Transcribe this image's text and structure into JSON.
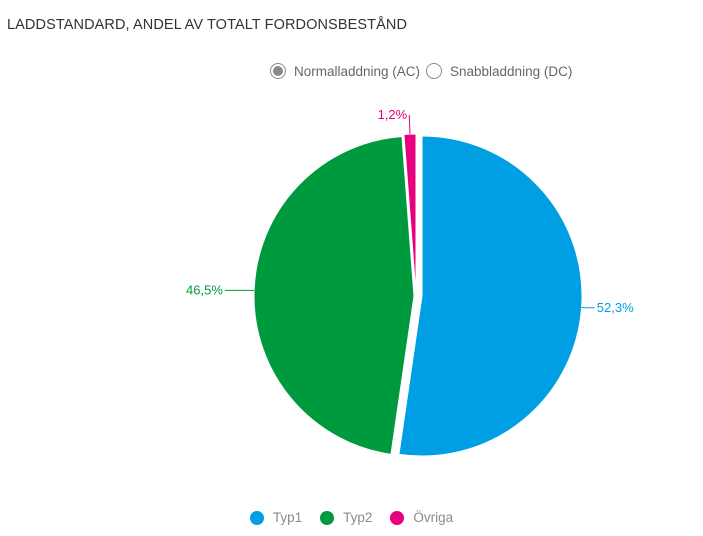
{
  "title": "LADDSTANDARD, ANDEL AV TOTALT FORDONSBESTÅND",
  "toggles": [
    {
      "label": "Normalladdning (AC)",
      "selected": true
    },
    {
      "label": "Snabbladdning (DC)",
      "selected": false
    }
  ],
  "chart_data": {
    "type": "pie",
    "title": "LADDSTANDARD, ANDEL AV TOTALT FORDONSBESTÅND",
    "categories": [
      "Typ1",
      "Typ2",
      "Övriga"
    ],
    "values": [
      52.3,
      46.5,
      1.2
    ],
    "labels": [
      "52,3%",
      "46,5%",
      "1,2%"
    ],
    "colors": [
      "#009fe3",
      "#009a3e",
      "#e6007e"
    ],
    "legend_position": "bottom"
  },
  "legend": [
    {
      "label": "Typ1",
      "color": "#009fe3"
    },
    {
      "label": "Typ2",
      "color": "#009a3e"
    },
    {
      "label": "Övriga",
      "color": "#e6007e"
    }
  ]
}
